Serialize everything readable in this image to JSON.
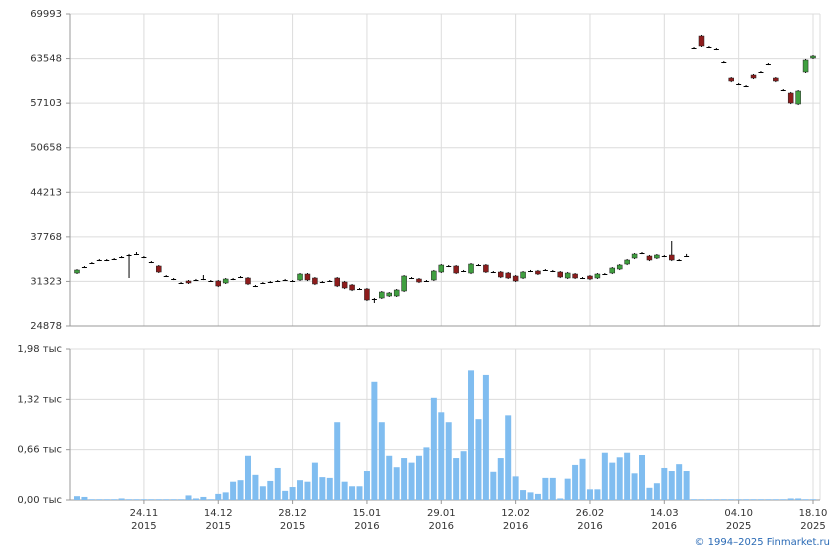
{
  "chart_data": [
    {
      "type": "candlestick",
      "up_color": "#3f9f3f",
      "down_color": "#8e1c1c",
      "grid": true,
      "ylim": [
        24878,
        69993
      ],
      "yticks": [
        24878,
        31323,
        37768,
        44213,
        50658,
        57103,
        63548,
        69993
      ],
      "open": [
        32542,
        33409,
        33988,
        34422,
        34422,
        34566,
        34855,
        35145,
        35289,
        34855,
        34132,
        33554,
        32108,
        31674,
        31096,
        31385,
        31530,
        31674,
        31385,
        31385,
        31096,
        31674,
        31963,
        31819,
        30662,
        31096,
        31240,
        31385,
        31530,
        31385,
        31530,
        32397,
        31819,
        31240,
        31385,
        31819,
        31240,
        30807,
        30228,
        30228,
        28782,
        28927,
        29216,
        29216,
        29939,
        31819,
        31674,
        31385,
        31530,
        32686,
        33554,
        33554,
        32831,
        32542,
        33699,
        33699,
        32686,
        32686,
        32542,
        32108,
        31819,
        32831,
        32831,
        32976,
        32831,
        32686,
        31819,
        32397,
        31819,
        32108,
        31819,
        32397,
        32542,
        33120,
        33843,
        34711,
        35434,
        35000,
        34711,
        35000,
        35145,
        34422,
        35000,
        65077,
        66812,
        65221,
        64932,
        63052,
        60739,
        59871,
        59582,
        61173,
        61606,
        62763,
        60739,
        59004,
        58570,
        56979,
        61606,
        63631
      ],
      "high": [
        33100,
        33550,
        34130,
        34570,
        34570,
        34710,
        35000,
        35300,
        35578,
        35000,
        34280,
        33700,
        32250,
        31820,
        31240,
        31530,
        31680,
        32253,
        31530,
        31530,
        31820,
        31820,
        32110,
        31960,
        30810,
        31240,
        31390,
        31530,
        31680,
        31530,
        32540,
        32540,
        31960,
        31390,
        31530,
        31960,
        31390,
        30950,
        30370,
        30370,
        28930,
        29940,
        29790,
        30230,
        32250,
        31960,
        31820,
        31530,
        32980,
        33840,
        33700,
        33700,
        32980,
        33990,
        33840,
        33840,
        32830,
        32830,
        32690,
        32250,
        32830,
        32980,
        32980,
        33120,
        32980,
        32830,
        32690,
        32540,
        31960,
        32250,
        32540,
        32540,
        33410,
        33840,
        34570,
        35430,
        35580,
        35150,
        35290,
        35150,
        37169,
        34570,
        35300,
        65220,
        66960,
        65370,
        65080,
        63200,
        60880,
        60020,
        59730,
        61320,
        61750,
        62910,
        60880,
        59150,
        58720,
        59000,
        63490,
        64070
      ],
      "low": [
        32390,
        33260,
        33840,
        34270,
        34270,
        34420,
        34700,
        31819,
        35140,
        34700,
        33980,
        32540,
        31960,
        31520,
        30950,
        30950,
        31380,
        31520,
        31240,
        30510,
        30950,
        31520,
        31810,
        30800,
        30510,
        30950,
        31090,
        31240,
        31380,
        31240,
        31380,
        31380,
        30800,
        31090,
        31240,
        30510,
        30220,
        29930,
        30080,
        28490,
        28204,
        28780,
        29070,
        29070,
        29790,
        31670,
        31090,
        31240,
        31380,
        32540,
        33400,
        32390,
        32680,
        32390,
        33550,
        32540,
        32540,
        31810,
        31670,
        31240,
        31670,
        32680,
        32250,
        32830,
        32680,
        31810,
        31670,
        31670,
        31670,
        31520,
        31670,
        32250,
        32390,
        32970,
        33690,
        34560,
        35280,
        34270,
        34560,
        34850,
        34270,
        34270,
        34850,
        64930,
        65220,
        65070,
        64780,
        62900,
        60150,
        59720,
        59430,
        60590,
        61460,
        62610,
        60150,
        58850,
        56970,
        56830,
        61460,
        63480
      ],
      "close": [
        32976,
        33409,
        33988,
        34422,
        34422,
        34566,
        34855,
        35145,
        35289,
        34855,
        34132,
        32686,
        32108,
        31674,
        31096,
        31096,
        31530,
        31674,
        31385,
        30662,
        31674,
        31674,
        31963,
        30951,
        30662,
        31096,
        31240,
        31385,
        31530,
        31385,
        32397,
        31530,
        30951,
        31240,
        31385,
        30662,
        30373,
        30084,
        30228,
        28638,
        28782,
        29794,
        29650,
        30084,
        32108,
        31819,
        31240,
        31385,
        32831,
        33699,
        33554,
        32542,
        32831,
        33843,
        33699,
        32686,
        32686,
        31963,
        31819,
        31385,
        32686,
        32831,
        32397,
        32976,
        32831,
        31963,
        32542,
        31819,
        31819,
        31674,
        32397,
        32397,
        33265,
        33699,
        34422,
        35289,
        35434,
        34422,
        35145,
        35000,
        34422,
        34422,
        35000,
        65077,
        65366,
        65221,
        64932,
        63052,
        60305,
        59871,
        59582,
        60739,
        61606,
        62763,
        60305,
        59004,
        57124,
        58859,
        63342,
        63920
      ]
    },
    {
      "type": "bar",
      "color": "#80bdf0",
      "grid": true,
      "ylim": [
        0,
        1.98
      ],
      "yticks": [
        {
          "value": 0,
          "label": "0,00 тыс"
        },
        {
          "value": 0.66,
          "label": "0,66 тыс"
        },
        {
          "value": 1.32,
          "label": "1,32 тыс"
        },
        {
          "value": 1.98,
          "label": "1,98 тыс"
        }
      ],
      "categories": [
        null,
        null,
        null,
        null,
        null,
        null,
        null,
        null,
        null,
        "24.11",
        null,
        null,
        null,
        null,
        null,
        null,
        null,
        null,
        null,
        "14.12",
        null,
        null,
        null,
        null,
        null,
        null,
        null,
        null,
        null,
        "28.12",
        null,
        null,
        null,
        null,
        null,
        null,
        null,
        null,
        null,
        "15.01",
        null,
        null,
        null,
        null,
        null,
        null,
        null,
        null,
        null,
        "29.01",
        null,
        null,
        null,
        null,
        null,
        null,
        null,
        null,
        null,
        "12.02",
        null,
        null,
        null,
        null,
        null,
        null,
        null,
        null,
        null,
        "26.02",
        null,
        null,
        null,
        null,
        null,
        null,
        null,
        null,
        null,
        "14.03",
        null,
        null,
        null,
        null,
        null,
        null,
        null,
        null,
        null,
        "04.10",
        null,
        null,
        null,
        null,
        null,
        null,
        null,
        null,
        null,
        "18.10"
      ],
      "category_years": [
        null,
        null,
        null,
        null,
        null,
        null,
        null,
        null,
        null,
        "2015",
        null,
        null,
        null,
        null,
        null,
        null,
        null,
        null,
        null,
        "2015",
        null,
        null,
        null,
        null,
        null,
        null,
        null,
        null,
        null,
        "2015",
        null,
        null,
        null,
        null,
        null,
        null,
        null,
        null,
        null,
        "2016",
        null,
        null,
        null,
        null,
        null,
        null,
        null,
        null,
        null,
        "2016",
        null,
        null,
        null,
        null,
        null,
        null,
        null,
        null,
        null,
        "2016",
        null,
        null,
        null,
        null,
        null,
        null,
        null,
        null,
        null,
        "2016",
        null,
        null,
        null,
        null,
        null,
        null,
        null,
        null,
        null,
        "2016",
        null,
        null,
        null,
        null,
        null,
        null,
        null,
        null,
        null,
        "2025",
        null,
        null,
        null,
        null,
        null,
        null,
        null,
        null,
        null,
        "2025"
      ],
      "values": [
        0.05,
        0.04,
        0.01,
        0.01,
        0.01,
        0.01,
        0.02,
        0.01,
        0.01,
        0.01,
        0.01,
        0.01,
        0.01,
        0.01,
        0.01,
        0.06,
        0.02,
        0.04,
        0.01,
        0.08,
        0.1,
        0.24,
        0.26,
        0.58,
        0.33,
        0.18,
        0.25,
        0.42,
        0.12,
        0.17,
        0.26,
        0.24,
        0.49,
        0.3,
        0.29,
        1.02,
        0.24,
        0.18,
        0.18,
        0.38,
        1.55,
        1.02,
        0.58,
        0.43,
        0.55,
        0.49,
        0.58,
        0.69,
        1.34,
        1.15,
        1.02,
        0.55,
        0.64,
        1.7,
        1.06,
        1.64,
        0.37,
        0.55,
        1.11,
        0.31,
        0.13,
        0.1,
        0.08,
        0.29,
        0.29,
        0.02,
        0.28,
        0.46,
        0.54,
        0.14,
        0.14,
        0.62,
        0.49,
        0.56,
        0.62,
        0.35,
        0.59,
        0.16,
        0.22,
        0.42,
        0.38,
        0.47,
        0.38,
        0.01,
        0.01,
        0.01,
        0.01,
        0.01,
        0.01,
        0.01,
        0.01,
        0.01,
        0.01,
        0.01,
        0.01,
        0.01,
        0.02,
        0.02,
        0.01,
        0.01
      ]
    }
  ],
  "credit": "© 1994–2025 Finmarket.ru"
}
